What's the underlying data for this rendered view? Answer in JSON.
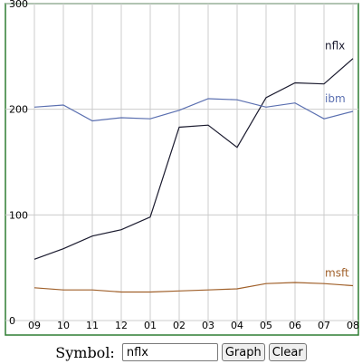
{
  "chart_data": {
    "type": "line",
    "categories": [
      "09",
      "10",
      "11",
      "12",
      "01",
      "02",
      "03",
      "04",
      "05",
      "06",
      "07",
      "08"
    ],
    "y_ticks": [
      "0",
      "100",
      "200",
      "300"
    ],
    "ylim": [
      0,
      300
    ],
    "grid": true,
    "series": [
      {
        "name": "nflx",
        "color": "#1a1a2e",
        "values": [
          58,
          68,
          80,
          86,
          98,
          183,
          185,
          164,
          211,
          225,
          224,
          248
        ]
      },
      {
        "name": "ibm",
        "color": "#5a6fb0",
        "values": [
          202,
          204,
          189,
          192,
          191,
          199,
          210,
          209,
          202,
          206,
          191,
          198
        ]
      },
      {
        "name": "msft",
        "color": "#a0602a",
        "values": [
          31,
          29,
          29,
          27,
          27,
          28,
          29,
          30,
          35,
          36,
          35,
          33
        ]
      }
    ]
  },
  "form": {
    "symbol_label": "Symbol:",
    "symbol_value": "nflx",
    "graph_label": "Graph",
    "clear_label": "Clear"
  }
}
